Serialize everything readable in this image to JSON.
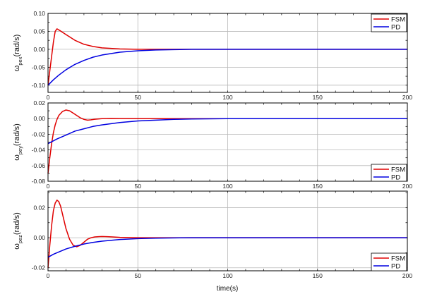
{
  "chart_data": [
    {
      "type": "line",
      "ylabel_symbol": "ω",
      "ylabel_sub": "pex",
      "ylabel_unit": "(rad/s)",
      "xlim": [
        0,
        200
      ],
      "ylim": [
        -0.12,
        0.1
      ],
      "xticks": [
        0,
        50,
        100,
        150,
        200
      ],
      "xtick_labels": [
        "0",
        "50",
        "100",
        "150",
        "200"
      ],
      "yticks": [
        -0.1,
        -0.05,
        0.0,
        0.05,
        0.1
      ],
      "ytick_labels": [
        "-0.10",
        "-0.05",
        "0.00",
        "0.05",
        "0.10"
      ],
      "grid": true,
      "legend_position": "top-right",
      "series": [
        {
          "name": "FSM",
          "color": "#e00000",
          "x": [
            0,
            1,
            2,
            3,
            4,
            5,
            7,
            10,
            15,
            20,
            25,
            30,
            40,
            50,
            60,
            80,
            100,
            150,
            200
          ],
          "y": [
            -0.1,
            -0.06,
            -0.02,
            0.02,
            0.05,
            0.057,
            0.051,
            0.041,
            0.025,
            0.014,
            0.008,
            0.004,
            0.001,
            0.0,
            0.0,
            0.0,
            0.0,
            0.0,
            0.0
          ]
        },
        {
          "name": "PD",
          "color": "#0000e0",
          "x": [
            0,
            3,
            6,
            10,
            15,
            20,
            25,
            30,
            40,
            50,
            60,
            70,
            80,
            100,
            150,
            200
          ],
          "y": [
            -0.1,
            -0.085,
            -0.072,
            -0.057,
            -0.042,
            -0.031,
            -0.022,
            -0.016,
            -0.008,
            -0.004,
            -0.002,
            -0.001,
            0.0,
            0.0,
            0.0,
            0.0
          ]
        }
      ]
    },
    {
      "type": "line",
      "ylabel_symbol": "ω",
      "ylabel_sub": "pey",
      "ylabel_unit": "(rad/s)",
      "xlim": [
        0,
        200
      ],
      "ylim": [
        -0.08,
        0.02
      ],
      "xticks": [
        0,
        50,
        100,
        150,
        200
      ],
      "xtick_labels": [
        "0",
        "50",
        "100",
        "150",
        "200"
      ],
      "yticks": [
        -0.08,
        -0.06,
        -0.04,
        -0.02,
        0.0,
        0.02
      ],
      "ytick_labels": [
        "-0.08",
        "-0.06",
        "-0.04",
        "-0.02",
        "0.00",
        "0.02"
      ],
      "grid": true,
      "legend_position": "bottom-right",
      "series": [
        {
          "name": "FSM",
          "color": "#e00000",
          "x": [
            0,
            1,
            2,
            3,
            4,
            5,
            6,
            8,
            10,
            12,
            14,
            16,
            18,
            20,
            22,
            24,
            26,
            30,
            35,
            40,
            50,
            60,
            80,
            100,
            150,
            200
          ],
          "y": [
            -0.07,
            -0.05,
            -0.032,
            -0.018,
            -0.008,
            -0.001,
            0.004,
            0.009,
            0.011,
            0.01,
            0.007,
            0.004,
            0.001,
            -0.001,
            -0.002,
            -0.0015,
            -0.0008,
            0.0,
            0.0002,
            0.0001,
            0.0,
            0.0,
            0.0,
            0.0,
            0.0,
            0.0
          ]
        },
        {
          "name": "PD",
          "color": "#0000e0",
          "x": [
            0,
            5,
            10,
            15,
            20,
            25,
            30,
            40,
            50,
            60,
            70,
            80,
            100,
            120,
            150,
            200
          ],
          "y": [
            -0.032,
            -0.026,
            -0.021,
            -0.016,
            -0.013,
            -0.01,
            -0.008,
            -0.005,
            -0.003,
            -0.002,
            -0.001,
            -0.0005,
            0.0,
            0.0,
            0.0,
            0.0
          ]
        }
      ]
    },
    {
      "type": "line",
      "ylabel_symbol": "ω",
      "ylabel_sub": "pez",
      "ylabel_unit": "(rad/s)",
      "xlim": [
        0,
        200
      ],
      "ylim": [
        -0.022,
        0.031
      ],
      "xticks": [
        0,
        50,
        100,
        150,
        200
      ],
      "xtick_labels": [
        "0",
        "50",
        "100",
        "150",
        "200"
      ],
      "yticks": [
        -0.02,
        0.0,
        0.02
      ],
      "ytick_labels": [
        "-0.02",
        "0.00",
        "0.02"
      ],
      "grid": true,
      "legend_position": "bottom-right",
      "series": [
        {
          "name": "FSM",
          "color": "#e00000",
          "x": [
            0,
            1,
            2,
            3,
            4,
            5,
            6,
            7,
            8,
            10,
            12,
            14,
            16,
            18,
            20,
            22,
            24,
            26,
            28,
            30,
            33,
            36,
            40,
            50,
            60,
            80,
            100,
            150,
            200
          ],
          "y": [
            -0.02,
            -0.005,
            0.008,
            0.018,
            0.023,
            0.025,
            0.024,
            0.021,
            0.016,
            0.006,
            -0.001,
            -0.005,
            -0.006,
            -0.005,
            -0.003,
            -0.001,
            0.0,
            0.0005,
            0.0007,
            0.0008,
            0.0007,
            0.0005,
            0.0002,
            0.0,
            0.0,
            0.0,
            0.0,
            0.0,
            0.0
          ]
        },
        {
          "name": "PD",
          "color": "#0000e0",
          "x": [
            0,
            3,
            6,
            10,
            15,
            20,
            25,
            30,
            40,
            50,
            60,
            80,
            100,
            150,
            200
          ],
          "y": [
            -0.013,
            -0.011,
            -0.0095,
            -0.0075,
            -0.0057,
            -0.0042,
            -0.0031,
            -0.0023,
            -0.0012,
            -0.0006,
            -0.0003,
            0.0,
            0.0,
            0.0,
            0.0
          ]
        }
      ]
    }
  ],
  "xlabel": "time(s)"
}
